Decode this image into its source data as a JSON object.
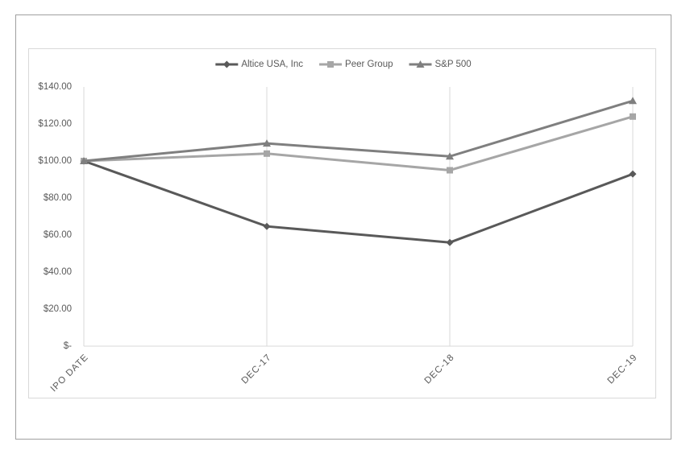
{
  "chart_data": {
    "type": "line",
    "categories": [
      "IPO DATE",
      "DEC-17",
      "DEC-18",
      "DEC-19"
    ],
    "series": [
      {
        "name": "Altice USA, Inc",
        "color": "#595959",
        "marker": "diamond",
        "values": [
          100,
          64.7,
          56,
          93
        ]
      },
      {
        "name": "Peer Group",
        "color": "#a6a6a6",
        "marker": "square",
        "values": [
          100,
          104,
          95,
          124
        ]
      },
      {
        "name": "S&P 500",
        "color": "#7f7f7f",
        "marker": "triangle",
        "values": [
          100,
          109.5,
          102.5,
          132.5
        ]
      }
    ],
    "ylim": [
      0,
      140
    ],
    "yticks": [
      {
        "value": 0,
        "label": "$-"
      },
      {
        "value": 20,
        "label": "$20.00"
      },
      {
        "value": 40,
        "label": "$40.00"
      },
      {
        "value": 60,
        "label": "$60.00"
      },
      {
        "value": 80,
        "label": "$80.00"
      },
      {
        "value": 100,
        "label": "$100.00"
      },
      {
        "value": 120,
        "label": "$120.00"
      },
      {
        "value": 140,
        "label": "$140.00"
      }
    ],
    "grid": true,
    "legend": "top"
  }
}
